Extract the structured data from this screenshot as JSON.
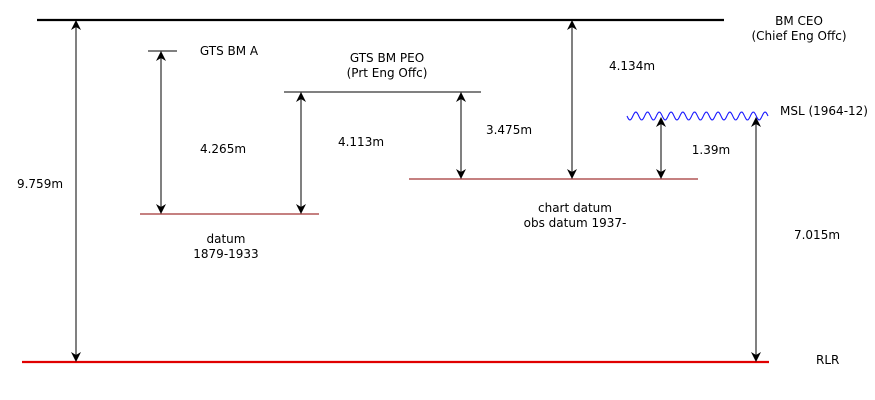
{
  "levels": {
    "bm_ceo": {
      "line1": "BM  CEO",
      "line2": "(Chief Eng Offc)"
    },
    "gts_bm_a": {
      "label": "GTS  BM A"
    },
    "gts_bm_peo": {
      "line1": "GTS  BM PEO",
      "line2": "(Prt Eng Offc)"
    },
    "msl": {
      "label": "MSL (1964-12)"
    },
    "chart_datum": {
      "line1": "chart datum",
      "line2": "obs datum 1937-"
    },
    "old_datum": {
      "line1": "datum",
      "line2": "1879-1933"
    },
    "rlr": {
      "label": "RLR"
    }
  },
  "distances": {
    "ceo_to_rlr": "9.759m",
    "bm_a_to_old_datum": "4.265m",
    "peo_to_old_datum": "4.113m",
    "peo_to_chart_datum": "3.475m",
    "ceo_to_chart_datum": "4.134m",
    "msl_to_chart_datum": "1.39m",
    "msl_to_rlr": "7.015m"
  },
  "colors": {
    "ink": "#000000",
    "datum_line": "#8b0000",
    "rlr_line": "#e00000",
    "msl_wave": "#1a1aff"
  }
}
